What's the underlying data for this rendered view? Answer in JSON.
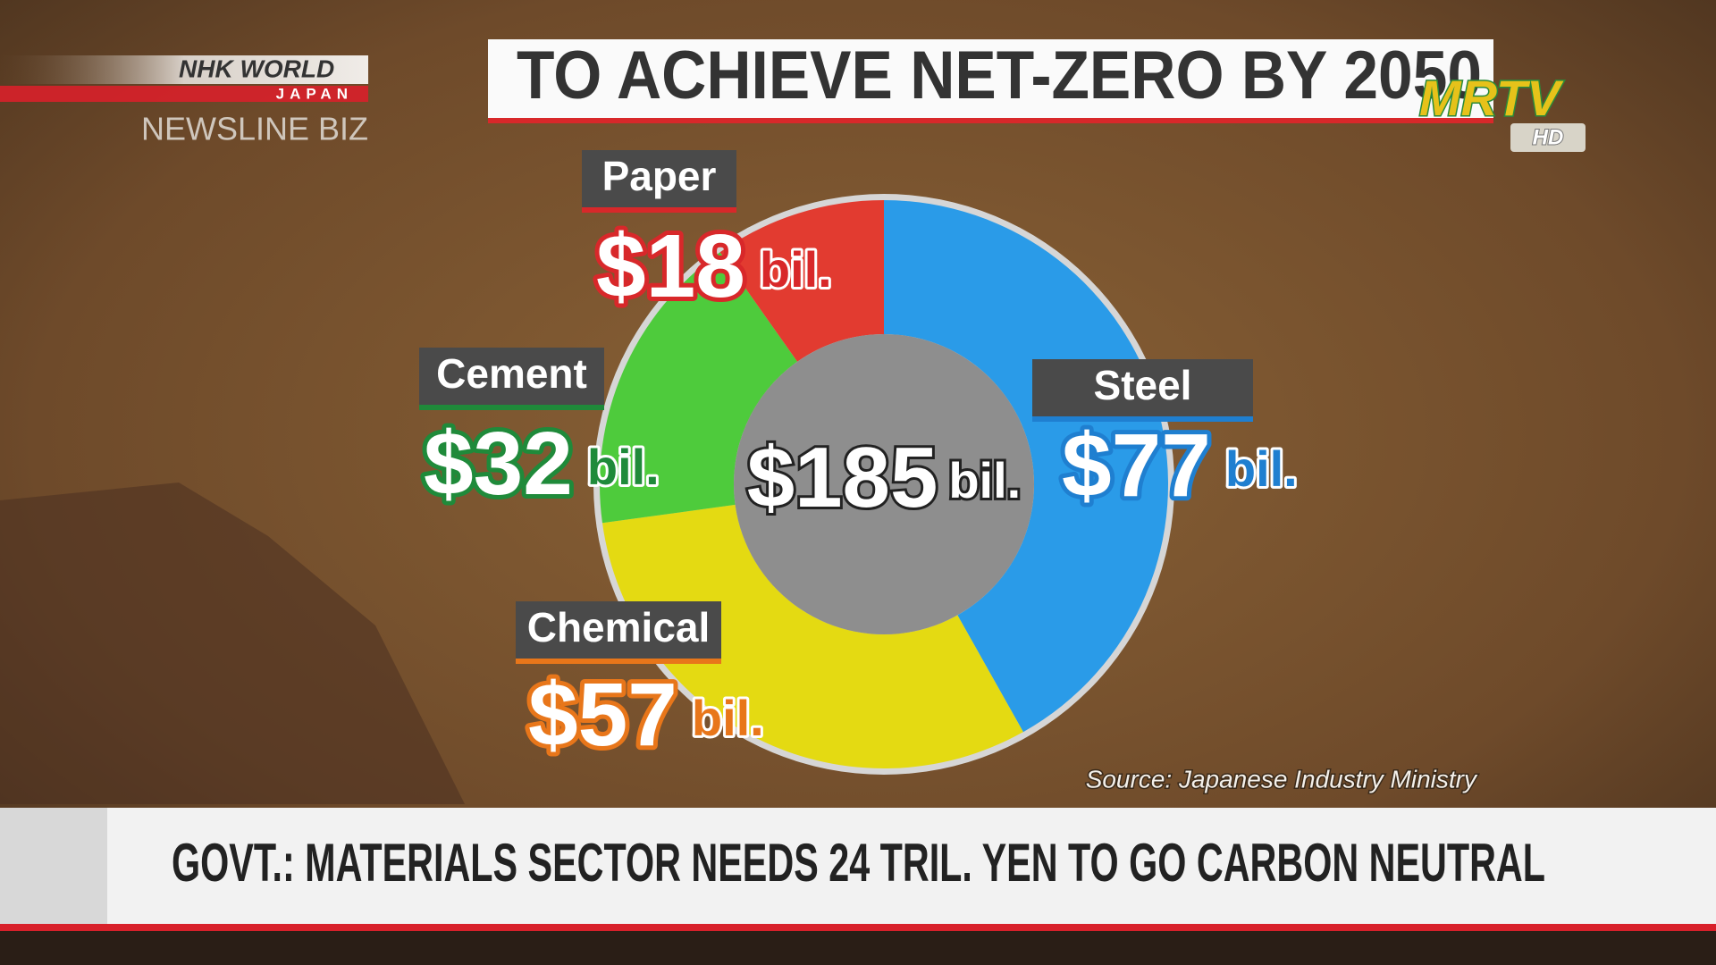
{
  "overlay": {
    "brand": "NHK WORLD",
    "brand_sub": "JAPAN",
    "program": "NEWSLINE BIZ",
    "channel": "MRTV",
    "channel_sub": "HD",
    "headline": "GOVT.: MATERIALS SECTOR NEEDS 24 TRIL. YEN TO GO CARBON NEUTRAL"
  },
  "chart_data": {
    "type": "pie",
    "donut": true,
    "title": "TO ACHIEVE NET-ZERO BY 2050",
    "categories": [
      "Steel",
      "Chemical",
      "Cement",
      "Paper"
    ],
    "values": [
      77,
      57,
      32,
      18
    ],
    "value_labels": [
      "$77",
      "$57",
      "$32",
      "$18"
    ],
    "unit": "bil.",
    "colors": [
      "#2a9be8",
      "#e4da12",
      "#4ecb3c",
      "#e23b30"
    ],
    "label_colors": [
      "#1f7fd0",
      "#e8761a",
      "#1f8a3a",
      "#d8282a"
    ],
    "total_label": "$185",
    "source": "Source: Japanese Industry Ministry"
  }
}
